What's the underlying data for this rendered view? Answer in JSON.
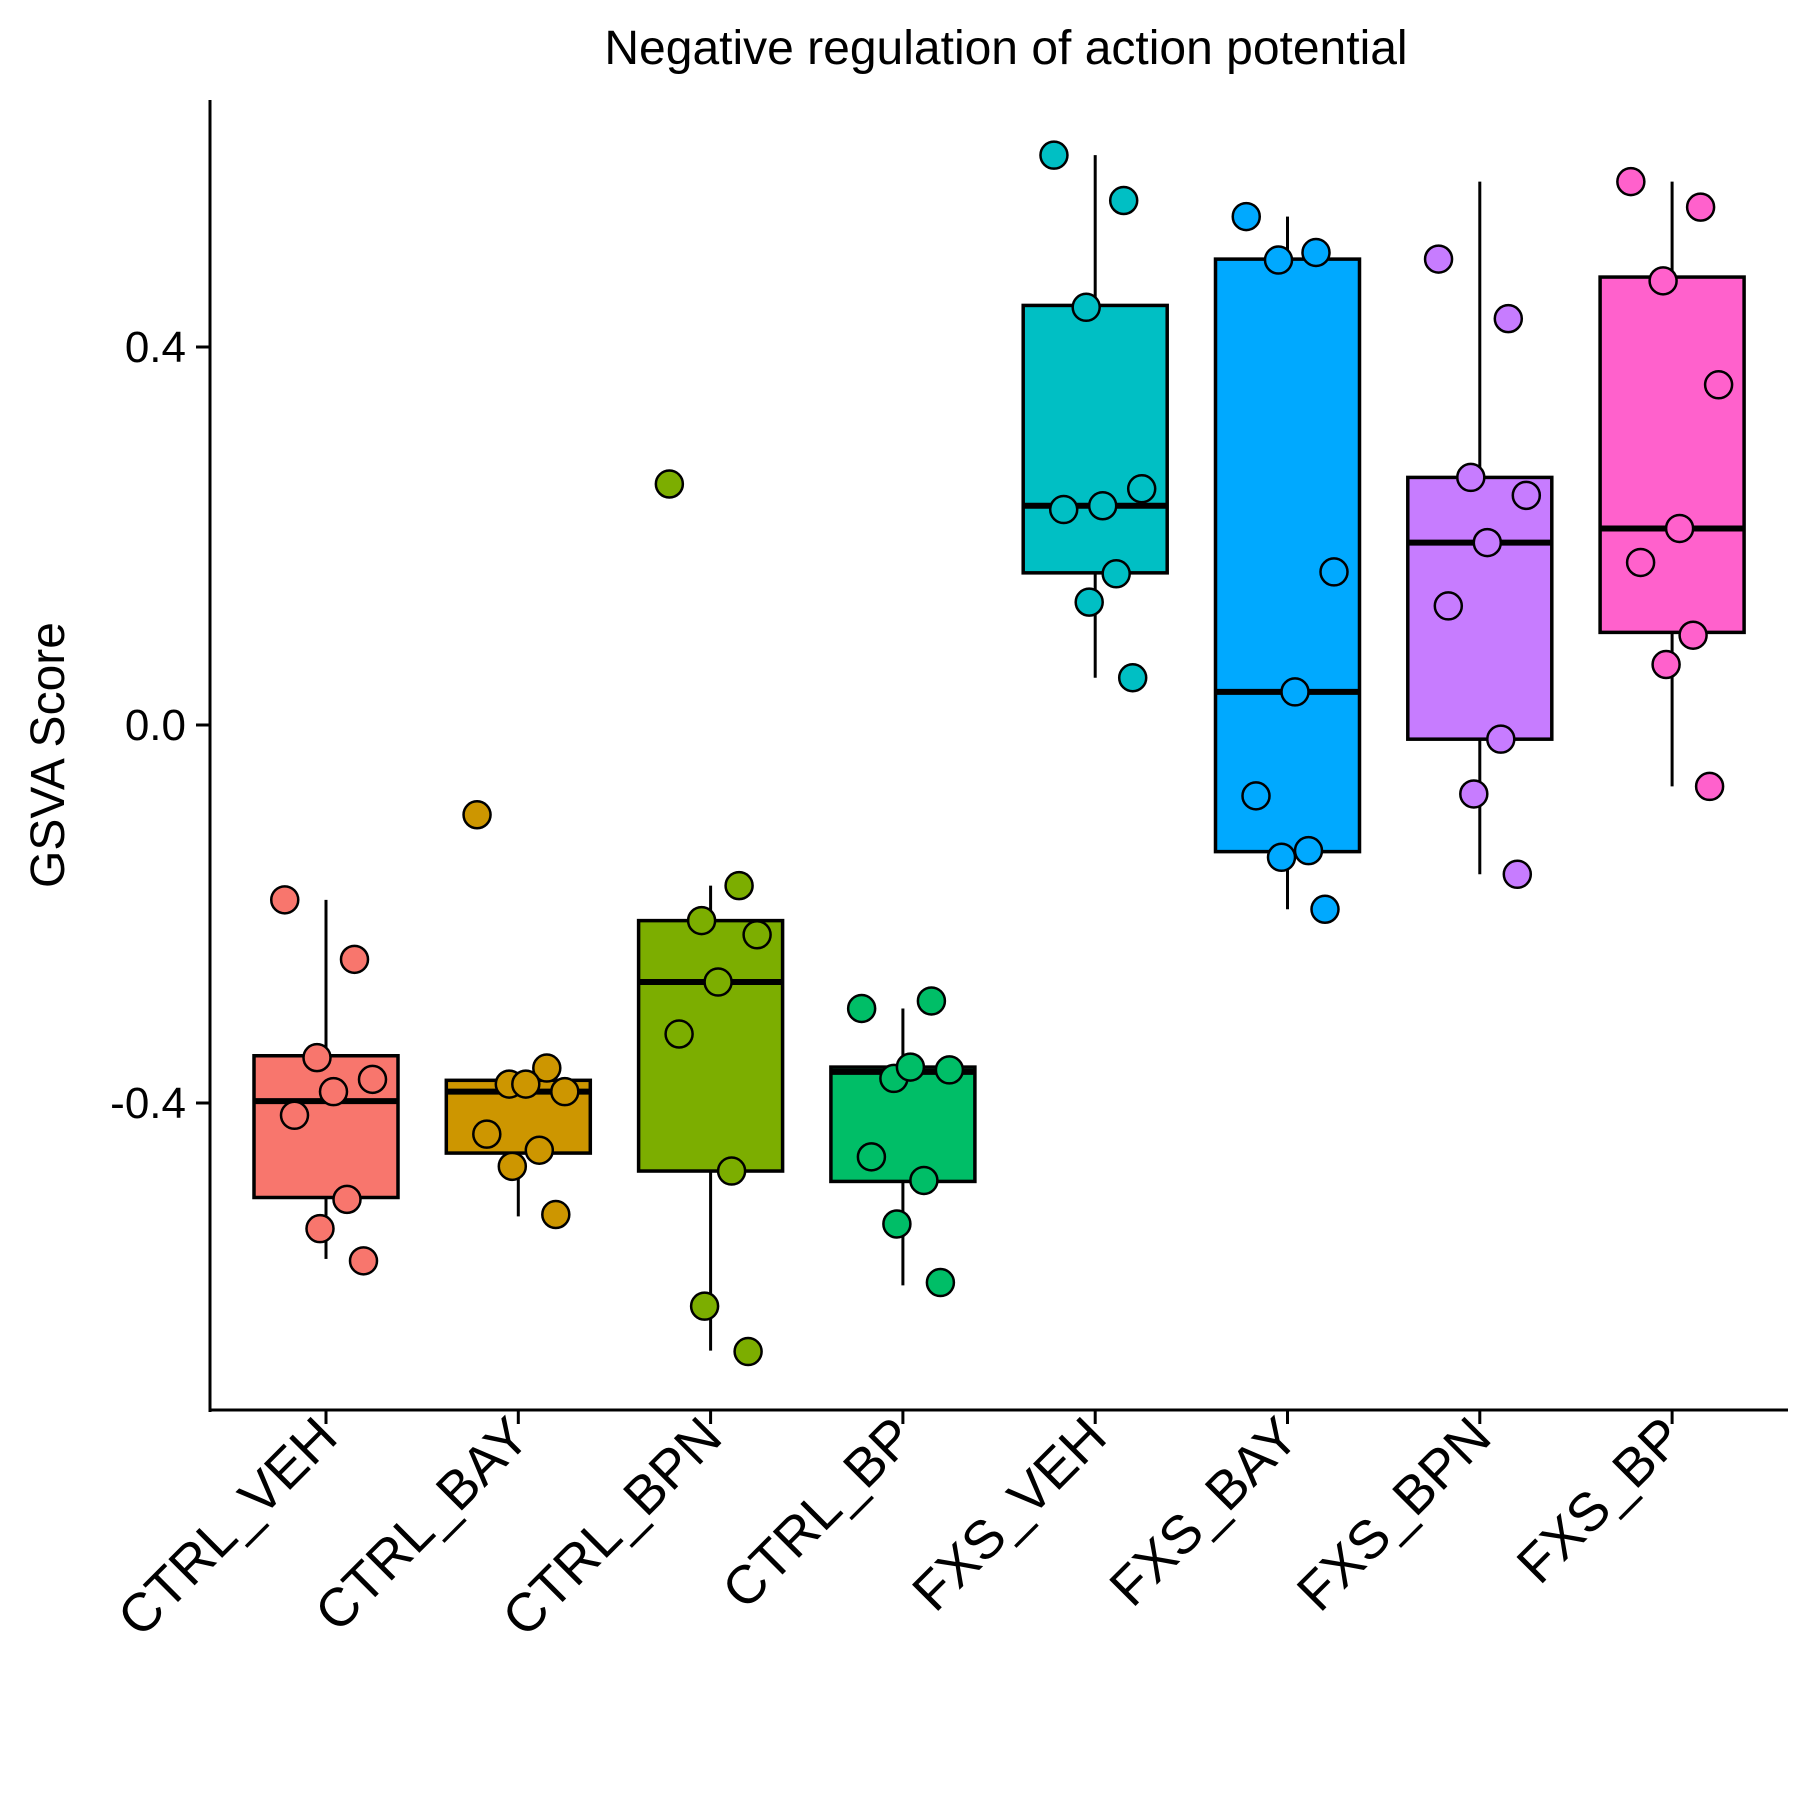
{
  "chart_data": {
    "type": "box",
    "title": "Negative regulation of action potential",
    "xlabel": "",
    "ylabel": "GSVA Score",
    "ylim": [
      -0.72,
      0.66
    ],
    "yticks": [
      {
        "value": 0.4,
        "label": "0.4"
      },
      {
        "value": 0.0,
        "label": "0.0"
      },
      {
        "value": -0.4,
        "label": "-0.4"
      }
    ],
    "grid": false,
    "legend": "none",
    "categories": [
      "CTRL_VEH",
      "CTRL_BAY",
      "CTRL_BPN",
      "CTRL_BP",
      "FXS_VEH",
      "FXS_BAY",
      "FXS_BPN",
      "FXS_BP"
    ],
    "colors": [
      "#F8766D",
      "#CD9600",
      "#7CAE00",
      "#00BE67",
      "#00BFC4",
      "#00A9FF",
      "#C77CFF",
      "#FF61CC"
    ],
    "boxes": [
      {
        "whisker_low": -0.565,
        "q1": -0.5,
        "median": -0.398,
        "q3": -0.35,
        "whisker_high": -0.185
      },
      {
        "whisker_low": -0.52,
        "q1": -0.453,
        "median": -0.388,
        "q3": -0.376,
        "whisker_high": -0.376
      },
      {
        "whisker_low": -0.662,
        "q1": -0.472,
        "median": -0.272,
        "q3": -0.207,
        "whisker_high": -0.17
      },
      {
        "whisker_low": -0.593,
        "q1": -0.483,
        "median": -0.367,
        "q3": -0.362,
        "whisker_high": -0.3
      },
      {
        "whisker_low": 0.05,
        "q1": 0.161,
        "median": 0.232,
        "q3": 0.444,
        "whisker_high": 0.603
      },
      {
        "whisker_low": -0.195,
        "q1": -0.134,
        "median": 0.035,
        "q3": 0.493,
        "whisker_high": 0.538
      },
      {
        "whisker_low": -0.158,
        "q1": -0.015,
        "median": 0.193,
        "q3": 0.262,
        "whisker_high": 0.575
      },
      {
        "whisker_low": -0.065,
        "q1": 0.098,
        "median": 0.208,
        "q3": 0.474,
        "whisker_high": 0.575
      }
    ],
    "points": [
      [
        -0.185,
        -0.248,
        -0.352,
        -0.375,
        -0.388,
        -0.413,
        -0.502,
        -0.533,
        -0.567
      ],
      [
        -0.095,
        -0.363,
        -0.38,
        -0.388,
        -0.38,
        -0.433,
        -0.45,
        -0.467,
        -0.518
      ],
      [
        0.255,
        -0.17,
        -0.207,
        -0.222,
        -0.272,
        -0.327,
        -0.472,
        -0.615,
        -0.663
      ],
      [
        -0.3,
        -0.292,
        -0.374,
        -0.365,
        -0.362,
        -0.457,
        -0.482,
        -0.528,
        -0.59
      ],
      [
        0.603,
        0.555,
        0.442,
        0.25,
        0.232,
        0.228,
        0.16,
        0.13,
        0.05
      ],
      [
        0.538,
        0.5,
        0.492,
        0.162,
        0.035,
        -0.075,
        -0.133,
        -0.14,
        -0.195
      ],
      [
        0.493,
        0.43,
        0.262,
        0.243,
        0.193,
        0.126,
        -0.015,
        -0.073,
        -0.158
      ],
      [
        0.575,
        0.548,
        0.47,
        0.36,
        0.208,
        0.172,
        0.095,
        0.064,
        -0.065
      ]
    ]
  }
}
